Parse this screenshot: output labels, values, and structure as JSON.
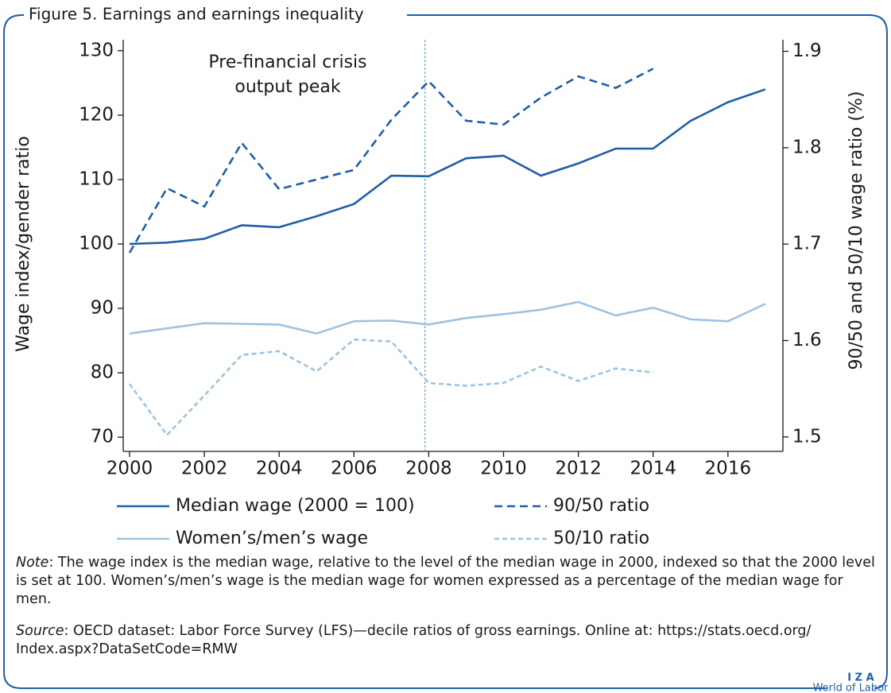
{
  "chart_data": {
    "type": "line",
    "title": "Figure 5. Earnings and earnings inequality",
    "ylabel": "Wage index/gender ratio",
    "y2label": "90/50 and 50/10 wage ratio (%)",
    "annotation": [
      "Pre-financial crisis",
      "output peak"
    ],
    "vline_x": 2007.9,
    "x": [
      2000,
      2001,
      2002,
      2003,
      2004,
      2005,
      2006,
      2007,
      2008,
      2009,
      2010,
      2011,
      2012,
      2013,
      2014,
      2015,
      2016,
      2017
    ],
    "series": [
      {
        "name": "Median wage (2000 = 100)",
        "color": "#1f5fa6",
        "dash": "solid",
        "axis": "y",
        "values": [
          100,
          100.2,
          100.8,
          102.9,
          102.6,
          104.3,
          106.2,
          110.6,
          110.5,
          113.3,
          113.7,
          110.6,
          112.5,
          114.8,
          114.8,
          119.1,
          122,
          124
        ]
      },
      {
        "name": "90/50 ratio",
        "color": "#1f5fa6",
        "dash": "long",
        "axis": "y2",
        "values": [
          1.691,
          1.758,
          1.739,
          1.805,
          1.757,
          1.767,
          1.777,
          1.829,
          1.869,
          1.828,
          1.824,
          1.852,
          1.874,
          1.862,
          1.882,
          null,
          null,
          null
        ]
      },
      {
        "name": "Women’s/men’s wage",
        "color": "#9ec3e0",
        "dash": "solid",
        "axis": "y",
        "values": [
          86.1,
          86.9,
          87.7,
          87.6,
          87.5,
          86.1,
          88.0,
          88.1,
          87.5,
          88.5,
          89.1,
          89.8,
          91.0,
          88.9,
          90.1,
          88.3,
          88.0,
          90.7
        ]
      },
      {
        "name": "50/10 ratio",
        "color": "#9ec3e0",
        "dash": "short",
        "axis": "y2",
        "values": [
          1.555,
          1.502,
          1.543,
          1.585,
          1.589,
          1.568,
          1.601,
          1.599,
          1.556,
          1.553,
          1.556,
          1.573,
          1.558,
          1.571,
          1.567,
          null,
          null,
          null
        ]
      }
    ],
    "xlim": [
      1999.83,
      2017.47
    ],
    "xticks": [
      2000,
      2002,
      2004,
      2006,
      2008,
      2010,
      2012,
      2014,
      2016
    ],
    "ylim": [
      67.8,
      131.7
    ],
    "yticks": [
      70,
      80,
      90,
      100,
      110,
      120,
      130
    ],
    "y2lim": [
      1.485,
      1.912
    ],
    "y2ticks": [
      1.5,
      1.6,
      1.7,
      1.8,
      1.9
    ],
    "note_label": "Note",
    "note": ": The wage index is the median wage, relative to the level of the median wage in 2000, indexed so that the 2000 level is set at 100. Women’s/men’s wage is the median wage for women expressed as a percentage of the median wage for men.",
    "source_label": "Source",
    "source": ": OECD dataset: Labor Force Survey (LFS)—decile ratios of gross earnings. Online at: https://stats.oecd.org/ Index.aspx?DataSetCode=RMW",
    "logo": "I Z A",
    "logo_sub": "World of Labor"
  }
}
